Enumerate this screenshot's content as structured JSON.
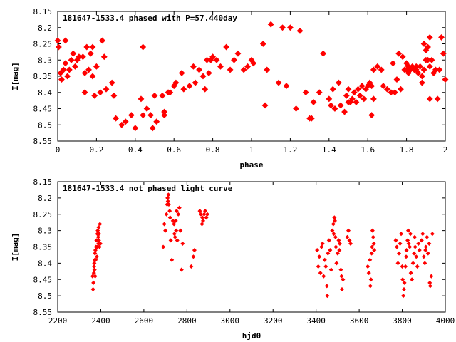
{
  "chart_data": [
    {
      "type": "scatter",
      "title": "181647-1533.4 phased with P=57.440day",
      "xlabel": "phase",
      "ylabel": "I[mag]",
      "xlim": [
        0,
        2
      ],
      "ylim": [
        8.15,
        8.55
      ],
      "y_inverted": true,
      "grid": false,
      "marker_color": "#ff0000",
      "marker": "filled-diamond",
      "xticks": [
        "0",
        "0.2",
        "0.4",
        "0.6",
        "0.8",
        "1",
        "1.2",
        "1.4",
        "1.6",
        "1.8",
        "2"
      ],
      "yticks": [
        "8.15",
        "8.2",
        "8.25",
        "8.3",
        "8.35",
        "8.4",
        "8.45",
        "8.5",
        "8.55"
      ],
      "points": [
        [
          0.0,
          8.24
        ],
        [
          0.005,
          8.26
        ],
        [
          0.04,
          8.24
        ],
        [
          0.015,
          8.34
        ],
        [
          0.02,
          8.36
        ],
        [
          0.03,
          8.33
        ],
        [
          0.04,
          8.31
        ],
        [
          0.05,
          8.35
        ],
        [
          0.06,
          8.33
        ],
        [
          0.07,
          8.3
        ],
        [
          0.08,
          8.28
        ],
        [
          0.09,
          8.32
        ],
        [
          0.1,
          8.3
        ],
        [
          0.11,
          8.29
        ],
        [
          0.13,
          8.29
        ],
        [
          0.14,
          8.34
        ],
        [
          0.14,
          8.4
        ],
        [
          0.15,
          8.26
        ],
        [
          0.16,
          8.33
        ],
        [
          0.17,
          8.28
        ],
        [
          0.18,
          8.26
        ],
        [
          0.18,
          8.35
        ],
        [
          0.19,
          8.41
        ],
        [
          0.2,
          8.32
        ],
        [
          0.22,
          8.4
        ],
        [
          0.23,
          8.24
        ],
        [
          0.24,
          8.29
        ],
        [
          0.25,
          8.39
        ],
        [
          0.28,
          8.37
        ],
        [
          0.29,
          8.41
        ],
        [
          0.3,
          8.48
        ],
        [
          0.33,
          8.5
        ],
        [
          0.35,
          8.49
        ],
        [
          0.38,
          8.47
        ],
        [
          0.4,
          8.51
        ],
        [
          0.43,
          8.42
        ],
        [
          0.44,
          8.26
        ],
        [
          0.44,
          8.47
        ],
        [
          0.46,
          8.45
        ],
        [
          0.48,
          8.47
        ],
        [
          0.49,
          8.51
        ],
        [
          0.5,
          8.41
        ],
        [
          0.51,
          8.49
        ],
        [
          0.54,
          8.41
        ],
        [
          0.55,
          8.46
        ],
        [
          0.55,
          8.47
        ],
        [
          0.57,
          8.4
        ],
        [
          0.58,
          8.4
        ],
        [
          0.6,
          8.38
        ],
        [
          0.61,
          8.37
        ],
        [
          0.64,
          8.34
        ],
        [
          0.65,
          8.39
        ],
        [
          0.68,
          8.38
        ],
        [
          0.7,
          8.32
        ],
        [
          0.71,
          8.37
        ],
        [
          0.73,
          8.33
        ],
        [
          0.75,
          8.35
        ],
        [
          0.76,
          8.39
        ],
        [
          0.77,
          8.3
        ],
        [
          0.78,
          8.34
        ],
        [
          0.79,
          8.3
        ],
        [
          0.8,
          8.29
        ],
        [
          0.82,
          8.3
        ],
        [
          0.84,
          8.32
        ],
        [
          0.87,
          8.26
        ],
        [
          0.89,
          8.33
        ],
        [
          0.91,
          8.3
        ],
        [
          0.93,
          8.28
        ],
        [
          0.96,
          8.33
        ],
        [
          0.98,
          8.32
        ],
        [
          1.0,
          8.3
        ],
        [
          1.01,
          8.31
        ],
        [
          1.06,
          8.25
        ],
        [
          1.07,
          8.44
        ],
        [
          1.08,
          8.33
        ],
        [
          1.1,
          8.19
        ],
        [
          1.14,
          8.37
        ],
        [
          1.16,
          8.2
        ],
        [
          1.18,
          8.38
        ],
        [
          1.2,
          8.2
        ],
        [
          1.23,
          8.45
        ],
        [
          1.25,
          8.21
        ],
        [
          1.28,
          8.4
        ],
        [
          1.3,
          8.48
        ],
        [
          1.31,
          8.48
        ],
        [
          1.32,
          8.43
        ],
        [
          1.35,
          8.4
        ],
        [
          1.37,
          8.28
        ],
        [
          1.4,
          8.42
        ],
        [
          1.41,
          8.44
        ],
        [
          1.42,
          8.39
        ],
        [
          1.43,
          8.45
        ],
        [
          1.45,
          8.37
        ],
        [
          1.46,
          8.44
        ],
        [
          1.48,
          8.46
        ],
        [
          1.49,
          8.41
        ],
        [
          1.5,
          8.43
        ],
        [
          1.5,
          8.39
        ],
        [
          1.51,
          8.43
        ],
        [
          1.52,
          8.42
        ],
        [
          1.53,
          8.4
        ],
        [
          1.54,
          8.43
        ],
        [
          1.55,
          8.39
        ],
        [
          1.56,
          8.41
        ],
        [
          1.57,
          8.38
        ],
        [
          1.58,
          8.42
        ],
        [
          1.59,
          8.39
        ],
        [
          1.6,
          8.38
        ],
        [
          1.61,
          8.37
        ],
        [
          1.62,
          8.38
        ],
        [
          1.62,
          8.47
        ],
        [
          1.63,
          8.42
        ],
        [
          1.63,
          8.33
        ],
        [
          1.65,
          8.32
        ],
        [
          1.67,
          8.33
        ],
        [
          1.68,
          8.38
        ],
        [
          1.7,
          8.39
        ],
        [
          1.72,
          8.4
        ],
        [
          1.73,
          8.31
        ],
        [
          1.74,
          8.4
        ],
        [
          1.75,
          8.36
        ],
        [
          1.76,
          8.28
        ],
        [
          1.77,
          8.39
        ],
        [
          1.78,
          8.29
        ],
        [
          1.79,
          8.33
        ],
        [
          1.8,
          8.31
        ],
        [
          1.8,
          8.33
        ],
        [
          1.81,
          8.32
        ],
        [
          1.81,
          8.34
        ],
        [
          1.82,
          8.33
        ],
        [
          1.83,
          8.32
        ],
        [
          1.84,
          8.33
        ],
        [
          1.85,
          8.32
        ],
        [
          1.85,
          8.33
        ],
        [
          1.86,
          8.34
        ],
        [
          1.87,
          8.32
        ],
        [
          1.88,
          8.35
        ],
        [
          1.88,
          8.37
        ],
        [
          1.89,
          8.25
        ],
        [
          1.89,
          8.33
        ],
        [
          1.9,
          8.3
        ],
        [
          1.9,
          8.27
        ],
        [
          1.91,
          8.3
        ],
        [
          1.91,
          8.26
        ],
        [
          1.92,
          8.32
        ],
        [
          1.92,
          8.42
        ],
        [
          1.92,
          8.23
        ],
        [
          1.93,
          8.3
        ],
        [
          1.94,
          8.34
        ],
        [
          1.95,
          8.33
        ],
        [
          1.96,
          8.42
        ],
        [
          1.97,
          8.33
        ],
        [
          1.98,
          8.23
        ],
        [
          1.99,
          8.28
        ],
        [
          2.0,
          8.36
        ]
      ]
    },
    {
      "type": "scatter",
      "title": "181647-1533.4 not phased light curve",
      "xlabel": "hjd0",
      "ylabel": "I[mag]",
      "xlim": [
        2200,
        4000
      ],
      "ylim": [
        8.15,
        8.55
      ],
      "y_inverted": true,
      "grid": false,
      "marker_color": "#ff0000",
      "marker": "small-diamond",
      "xticks": [
        "2200",
        "2400",
        "2600",
        "2800",
        "3000",
        "3200",
        "3400",
        "3600",
        "3800",
        "4000"
      ],
      "yticks": [
        "8.15",
        "8.2",
        "8.25",
        "8.3",
        "8.35",
        "8.4",
        "8.45",
        "8.5",
        "8.55"
      ],
      "points": [
        [
          2362,
          8.44
        ],
        [
          2364,
          8.48
        ],
        [
          2366,
          8.46
        ],
        [
          2368,
          8.43
        ],
        [
          2369,
          8.41
        ],
        [
          2370,
          8.4
        ],
        [
          2371,
          8.42
        ],
        [
          2372,
          8.39
        ],
        [
          2373,
          8.37
        ],
        [
          2374,
          8.44
        ],
        [
          2375,
          8.36
        ],
        [
          2376,
          8.39
        ],
        [
          2378,
          8.35
        ],
        [
          2380,
          8.33
        ],
        [
          2382,
          8.38
        ],
        [
          2383,
          8.35
        ],
        [
          2384,
          8.31
        ],
        [
          2386,
          8.3
        ],
        [
          2388,
          8.32
        ],
        [
          2389,
          8.34
        ],
        [
          2390,
          8.29
        ],
        [
          2391,
          8.33
        ],
        [
          2392,
          8.31
        ],
        [
          2394,
          8.35
        ],
        [
          2396,
          8.28
        ],
        [
          2398,
          8.34
        ],
        [
          2690,
          8.35
        ],
        [
          2695,
          8.28
        ],
        [
          2700,
          8.3
        ],
        [
          2705,
          8.25
        ],
        [
          2708,
          8.22
        ],
        [
          2710,
          8.2
        ],
        [
          2712,
          8.21
        ],
        [
          2714,
          8.19
        ],
        [
          2716,
          8.22
        ],
        [
          2720,
          8.24
        ],
        [
          2722,
          8.26
        ],
        [
          2725,
          8.33
        ],
        [
          2730,
          8.39
        ],
        [
          2735,
          8.27
        ],
        [
          2740,
          8.28
        ],
        [
          2742,
          8.31
        ],
        [
          2745,
          8.32
        ],
        [
          2748,
          8.27
        ],
        [
          2750,
          8.3
        ],
        [
          2752,
          8.24
        ],
        [
          2755,
          8.33
        ],
        [
          2760,
          8.25
        ],
        [
          2765,
          8.23
        ],
        [
          2770,
          8.3
        ],
        [
          2775,
          8.42
        ],
        [
          2780,
          8.34
        ],
        [
          2820,
          8.41
        ],
        [
          2830,
          8.38
        ],
        [
          2835,
          8.36
        ],
        [
          2860,
          8.24
        ],
        [
          2865,
          8.25
        ],
        [
          2870,
          8.28
        ],
        [
          2872,
          8.26
        ],
        [
          2875,
          8.27
        ],
        [
          2880,
          8.25
        ],
        [
          2885,
          8.24
        ],
        [
          2890,
          8.26
        ],
        [
          2895,
          8.25
        ],
        [
          3405,
          8.36
        ],
        [
          3410,
          8.41
        ],
        [
          3415,
          8.38
        ],
        [
          3420,
          8.43
        ],
        [
          3425,
          8.35
        ],
        [
          3430,
          8.34
        ],
        [
          3435,
          8.44
        ],
        [
          3440,
          8.39
        ],
        [
          3445,
          8.41
        ],
        [
          3450,
          8.47
        ],
        [
          3452,
          8.5
        ],
        [
          3455,
          8.37
        ],
        [
          3460,
          8.33
        ],
        [
          3465,
          8.36
        ],
        [
          3470,
          8.42
        ],
        [
          3475,
          8.3
        ],
        [
          3480,
          8.28
        ],
        [
          3482,
          8.31
        ],
        [
          3485,
          8.26
        ],
        [
          3487,
          8.27
        ],
        [
          3490,
          8.32
        ],
        [
          3492,
          8.35
        ],
        [
          3495,
          8.4
        ],
        [
          3500,
          8.37
        ],
        [
          3505,
          8.33
        ],
        [
          3508,
          8.36
        ],
        [
          3510,
          8.34
        ],
        [
          3515,
          8.42
        ],
        [
          3518,
          8.44
        ],
        [
          3520,
          8.48
        ],
        [
          3525,
          8.45
        ],
        [
          3545,
          8.32
        ],
        [
          3550,
          8.3
        ],
        [
          3555,
          8.33
        ],
        [
          3560,
          8.34
        ],
        [
          3640,
          8.41
        ],
        [
          3645,
          8.43
        ],
        [
          3650,
          8.39
        ],
        [
          3652,
          8.47
        ],
        [
          3655,
          8.45
        ],
        [
          3658,
          8.37
        ],
        [
          3660,
          8.35
        ],
        [
          3662,
          8.3
        ],
        [
          3665,
          8.32
        ],
        [
          3668,
          8.34
        ],
        [
          3670,
          8.36
        ],
        [
          3770,
          8.33
        ],
        [
          3775,
          8.35
        ],
        [
          3780,
          8.4
        ],
        [
          3785,
          8.37
        ],
        [
          3790,
          8.34
        ],
        [
          3795,
          8.31
        ],
        [
          3800,
          8.41
        ],
        [
          3802,
          8.45
        ],
        [
          3805,
          8.5
        ],
        [
          3808,
          8.48
        ],
        [
          3810,
          8.46
        ],
        [
          3815,
          8.41
        ],
        [
          3818,
          8.38
        ],
        [
          3820,
          8.36
        ],
        [
          3825,
          8.33
        ],
        [
          3828,
          8.3
        ],
        [
          3830,
          8.34
        ],
        [
          3835,
          8.35
        ],
        [
          3838,
          8.31
        ],
        [
          3840,
          8.43
        ],
        [
          3845,
          8.45
        ],
        [
          3850,
          8.4
        ],
        [
          3855,
          8.37
        ],
        [
          3858,
          8.32
        ],
        [
          3860,
          8.35
        ],
        [
          3865,
          8.38
        ],
        [
          3870,
          8.41
        ],
        [
          3875,
          8.34
        ],
        [
          3880,
          8.36
        ],
        [
          3890,
          8.33
        ],
        [
          3895,
          8.31
        ],
        [
          3900,
          8.38
        ],
        [
          3905,
          8.4
        ],
        [
          3908,
          8.36
        ],
        [
          3910,
          8.35
        ],
        [
          3915,
          8.32
        ],
        [
          3920,
          8.37
        ],
        [
          3925,
          8.34
        ],
        [
          3928,
          8.46
        ],
        [
          3930,
          8.47
        ],
        [
          3935,
          8.44
        ],
        [
          3940,
          8.31
        ]
      ]
    }
  ]
}
